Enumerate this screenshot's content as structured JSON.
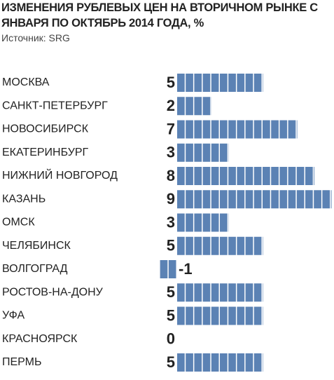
{
  "chart_data": {
    "type": "bar",
    "orientation": "horizontal",
    "title": "ИЗМЕНЕНИЯ  РУБЛЕВЫХ ЦЕН НА ВТОРИЧНОМ РЫНКЕ С ЯНВАРЯ ПО ОКТЯБРЬ 2014 ГОДА, %",
    "subtitle": "Источник: SRG",
    "categories": [
      "МОСКВА",
      "САНКТ-ПЕТЕРБУРГ",
      "НОВОСИБИРСК",
      "ЕКАТЕРИНБУРГ",
      "НИЖНИЙ НОВГОРОД",
      "КАЗАНЬ",
      "ОМСК",
      "ЧЕЛЯБИНСК",
      "ВОЛГОГРАД",
      "РОСТОВ-НА-ДОНУ",
      "УФА",
      "КРАСНОЯРСК",
      "ПЕРМЬ"
    ],
    "values": [
      5,
      2,
      7,
      3,
      8,
      9,
      3,
      5,
      -1,
      5,
      5,
      0,
      5
    ],
    "color": "#5b82b4"
  }
}
